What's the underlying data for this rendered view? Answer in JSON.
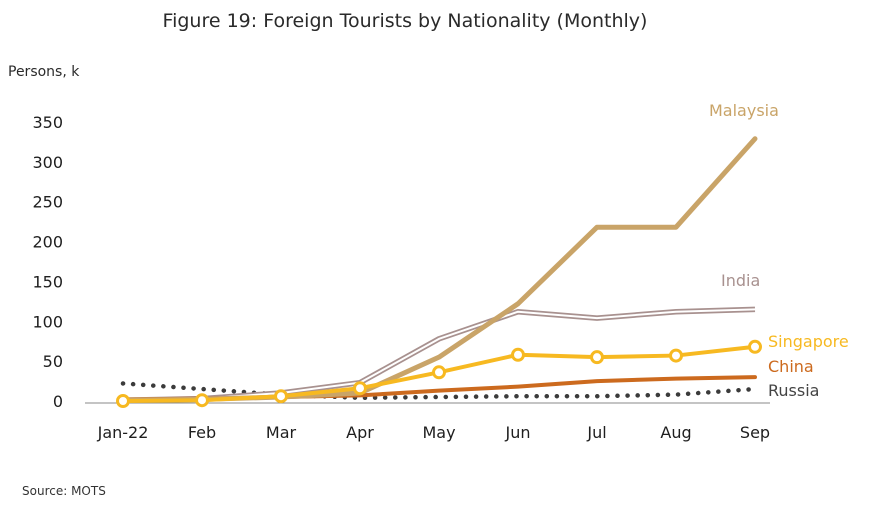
{
  "title": "Figure 19: Foreign Tourists by Nationality (Monthly)",
  "unit_label": "Persons, k",
  "source": "Source: MOTS",
  "chart_data": {
    "type": "line",
    "title": "Figure 19: Foreign Tourists by Nationality (Monthly)",
    "ylabel": "Persons, k",
    "xlabel": "",
    "categories": [
      "Jan-22",
      "Feb",
      "Mar",
      "Apr",
      "May",
      "Jun",
      "Jul",
      "Aug",
      "Sep"
    ],
    "ylim": [
      0,
      350
    ],
    "yticks": [
      0,
      50,
      100,
      150,
      200,
      250,
      300,
      350
    ],
    "grid": false,
    "legend": "direct labels at line ends (right)",
    "series": [
      {
        "name": "Malaysia",
        "color": "#c9a468",
        "style": "thick",
        "values": [
          1,
          2,
          5,
          10,
          55,
          122,
          218,
          218,
          329
        ]
      },
      {
        "name": "India",
        "color": "#a8918f",
        "style": "double",
        "values": [
          1,
          3,
          10,
          23,
          78,
          112,
          104,
          112,
          115
        ]
      },
      {
        "name": "Singapore",
        "color": "#f7b921",
        "style": "markers",
        "values": [
          0,
          1,
          6,
          16,
          36,
          58,
          55,
          57,
          68
        ]
      },
      {
        "name": "China",
        "color": "#cc6a1e",
        "style": "solid",
        "values": [
          2,
          3,
          5,
          7,
          13,
          18,
          25,
          28,
          30
        ]
      },
      {
        "name": "Russia",
        "color": "#3b3b3b",
        "style": "dotted",
        "values": [
          22,
          15,
          8,
          4,
          5,
          6,
          6,
          8,
          15
        ]
      }
    ]
  }
}
